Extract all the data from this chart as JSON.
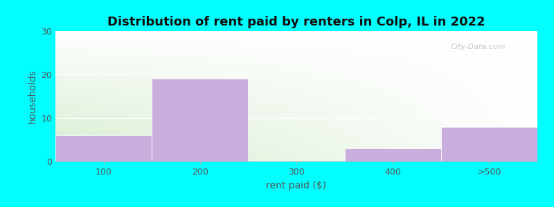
{
  "title": "Distribution of rent paid by renters in Colp, IL in 2022",
  "xlabel": "rent paid ($)",
  "ylabel": "households",
  "categories": [
    "100",
    "200",
    "300",
    "400",
    ">500"
  ],
  "values": [
    6,
    19,
    0,
    3,
    8
  ],
  "bar_color": "#c9aede",
  "bar_edgecolor": "#c9aede",
  "ylim": [
    0,
    30
  ],
  "yticks": [
    0,
    10,
    20,
    30
  ],
  "background_outer": "#00ffff",
  "background_inner_top_left": "#e8f5e2",
  "background_inner_top_right": "#ffffff",
  "background_inner_bottom": "#d4edda",
  "title_fontsize": 13,
  "axis_label_fontsize": 10,
  "tick_fontsize": 9,
  "bar_width": 1.0
}
